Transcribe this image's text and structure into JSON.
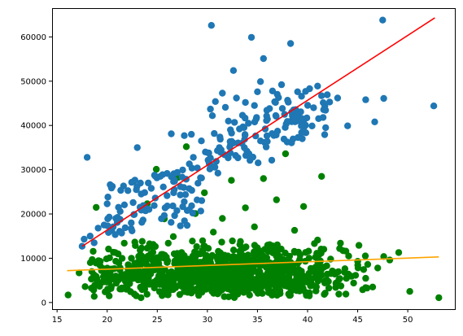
{
  "colors": {
    "blue_points": "#1f77b4",
    "green_points": "#008000",
    "red_line": "#ff0000",
    "orange_line": "#ffa500",
    "axis": "#000000",
    "background": "#ffffff"
  },
  "chart_data": {
    "type": "scatter",
    "title": "",
    "xlabel": "",
    "ylabel": "",
    "grid": false,
    "legend": "none",
    "xlim": [
      14.5,
      54.7
    ],
    "ylim": [
      -1500,
      66500
    ],
    "x_ticks": [
      15,
      20,
      25,
      30,
      35,
      40,
      45,
      50
    ],
    "y_ticks": [
      0,
      10000,
      20000,
      30000,
      40000,
      50000,
      60000
    ],
    "series": [
      {
        "kind": "scatter",
        "color_key": "blue_points",
        "point_count_estimate": 270,
        "points": [
          [
            17.5,
            12700
          ],
          [
            17.7,
            14300
          ],
          [
            18.0,
            32800
          ],
          [
            18.3,
            15000
          ],
          [
            18.7,
            13500
          ],
          [
            19.1,
            16800
          ],
          [
            19.7,
            17500
          ],
          [
            20.0,
            22300
          ],
          [
            20.2,
            19300
          ],
          [
            20.6,
            17100
          ],
          [
            21.3,
            20600
          ],
          [
            21.8,
            16900
          ],
          [
            22.4,
            18000
          ],
          [
            22.7,
            19900
          ],
          [
            23.0,
            35000
          ],
          [
            23.4,
            24500
          ],
          [
            23.6,
            21900
          ],
          [
            24.1,
            27000
          ],
          [
            24.4,
            25800
          ],
          [
            24.8,
            23600
          ],
          [
            25.3,
            28500
          ],
          [
            25.6,
            26100
          ],
          [
            26.0,
            21800
          ],
          [
            26.4,
            38100
          ],
          [
            26.7,
            27700
          ],
          [
            27.0,
            29400
          ],
          [
            27.3,
            24300
          ],
          [
            27.7,
            37700
          ],
          [
            28.2,
            31300
          ],
          [
            28.4,
            38000
          ],
          [
            28.6,
            32800
          ],
          [
            29.0,
            30400
          ],
          [
            29.4,
            36500
          ],
          [
            29.8,
            34000
          ],
          [
            30.1,
            33800
          ],
          [
            30.3,
            43700
          ],
          [
            30.4,
            62600
          ],
          [
            30.5,
            42200
          ],
          [
            30.8,
            45400
          ],
          [
            31.0,
            34300
          ],
          [
            31.2,
            35000
          ],
          [
            31.5,
            47300
          ],
          [
            31.8,
            44100
          ],
          [
            32.1,
            41000
          ],
          [
            32.3,
            39000
          ],
          [
            32.6,
            52400
          ],
          [
            32.9,
            46200
          ],
          [
            33.2,
            39200
          ],
          [
            33.5,
            42300
          ],
          [
            33.8,
            45200
          ],
          [
            34.1,
            40500
          ],
          [
            34.4,
            59900
          ],
          [
            34.7,
            44500
          ],
          [
            35.0,
            47600
          ],
          [
            35.3,
            49900
          ],
          [
            35.6,
            55100
          ],
          [
            35.9,
            41100
          ],
          [
            36.2,
            43800
          ],
          [
            36.5,
            47800
          ],
          [
            36.8,
            45200
          ],
          [
            37.1,
            46300
          ],
          [
            37.4,
            49200
          ],
          [
            37.7,
            42500
          ],
          [
            38.0,
            45700
          ],
          [
            38.3,
            58500
          ],
          [
            38.6,
            43500
          ],
          [
            39.0,
            47600
          ],
          [
            39.4,
            38400
          ],
          [
            39.8,
            47700
          ],
          [
            40.2,
            48300
          ],
          [
            40.6,
            44000
          ],
          [
            41.0,
            48900
          ],
          [
            41.4,
            46700
          ],
          [
            41.8,
            39500
          ],
          [
            42.2,
            45300
          ],
          [
            43.0,
            46200
          ],
          [
            44.0,
            39900
          ],
          [
            45.8,
            45800
          ],
          [
            46.7,
            40800
          ],
          [
            47.5,
            63800
          ],
          [
            47.6,
            46100
          ],
          [
            52.6,
            44400
          ]
        ]
      },
      {
        "kind": "scatter",
        "color_key": "green_points",
        "point_count_estimate": 1040,
        "points": [
          [
            16.1,
            1700
          ],
          [
            17.2,
            6700
          ],
          [
            17.8,
            3600
          ],
          [
            18.5,
            9700
          ],
          [
            18.9,
            21500
          ],
          [
            19.5,
            4600
          ],
          [
            20.2,
            1500
          ],
          [
            20.8,
            11300
          ],
          [
            21.3,
            7800
          ],
          [
            21.7,
            13400
          ],
          [
            22.2,
            5200
          ],
          [
            22.6,
            27300
          ],
          [
            23.1,
            9200
          ],
          [
            23.6,
            3100
          ],
          [
            24.0,
            22300
          ],
          [
            24.4,
            12600
          ],
          [
            24.9,
            30100
          ],
          [
            25.3,
            6900
          ],
          [
            25.7,
            18900
          ],
          [
            26.2,
            2700
          ],
          [
            26.6,
            14900
          ],
          [
            27.1,
            28300
          ],
          [
            27.5,
            8200
          ],
          [
            27.9,
            35200
          ],
          [
            28.4,
            4300
          ],
          [
            28.8,
            20100
          ],
          [
            29.3,
            11000
          ],
          [
            29.7,
            24800
          ],
          [
            30.2,
            6300
          ],
          [
            30.6,
            15900
          ],
          [
            31.1,
            2200
          ],
          [
            31.5,
            19000
          ],
          [
            32.0,
            9900
          ],
          [
            32.4,
            27600
          ],
          [
            32.9,
            5700
          ],
          [
            33.3,
            13800
          ],
          [
            33.8,
            21400
          ],
          [
            34.2,
            3800
          ],
          [
            34.7,
            17100
          ],
          [
            35.1,
            10700
          ],
          [
            35.6,
            28000
          ],
          [
            36.0,
            6600
          ],
          [
            36.5,
            12800
          ],
          [
            36.9,
            23200
          ],
          [
            37.4,
            4100
          ],
          [
            37.8,
            33600
          ],
          [
            38.3,
            9100
          ],
          [
            38.7,
            16300
          ],
          [
            39.2,
            2600
          ],
          [
            39.6,
            21700
          ],
          [
            40.1,
            11600
          ],
          [
            40.5,
            7300
          ],
          [
            41.0,
            14100
          ],
          [
            41.4,
            28500
          ],
          [
            41.9,
            5100
          ],
          [
            42.3,
            9800
          ],
          [
            42.8,
            3400
          ],
          [
            43.2,
            12200
          ],
          [
            43.7,
            6800
          ],
          [
            44.1,
            10500
          ],
          [
            44.6,
            4400
          ],
          [
            45.0,
            9300
          ],
          [
            45.5,
            2900
          ],
          [
            46.0,
            8600
          ],
          [
            46.5,
            3500
          ],
          [
            47.0,
            7800
          ],
          [
            47.6,
            10400
          ],
          [
            48.2,
            9600
          ],
          [
            49.1,
            11300
          ],
          [
            50.2,
            2500
          ],
          [
            53.1,
            1100
          ]
        ]
      },
      {
        "kind": "line",
        "color_key": "red_line",
        "x": [
          17.5,
          52.7
        ],
        "y": [
          12700,
          64300
        ]
      },
      {
        "kind": "line",
        "color_key": "orange_line",
        "x": [
          16.0,
          53.1
        ],
        "y": [
          7200,
          10300
        ]
      }
    ]
  }
}
